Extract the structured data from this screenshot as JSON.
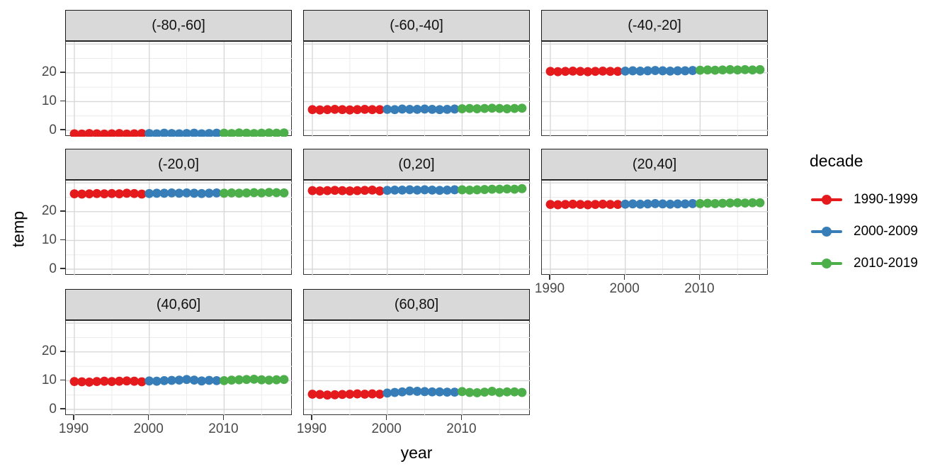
{
  "axes": {
    "x_title": "year",
    "y_title": "temp",
    "x_tick_labels": [
      "1990",
      "2000",
      "2010"
    ],
    "y_tick_labels": [
      "0",
      "10",
      "20"
    ]
  },
  "legend": {
    "title": "decade",
    "entries": [
      {
        "label": "1990-1999",
        "color": "#e41a1c"
      },
      {
        "label": "2000-2009",
        "color": "#377eb8"
      },
      {
        "label": "2010-2019",
        "color": "#4daf4a"
      }
    ]
  },
  "chart_data": {
    "type": "scatter",
    "title": "",
    "xlabel": "year",
    "ylabel": "temp",
    "legend_title": "decade",
    "legend_position": "right",
    "grid": true,
    "facet_shape": "3 columns x 3 rows, 8 panels",
    "x_ticks": [
      1990,
      2000,
      2010
    ],
    "x_minor_ticks": [
      1995,
      2005,
      2015
    ],
    "y_ticks": [
      0,
      10,
      20,
      30
    ],
    "y_minor_ticks": [
      5,
      15,
      25
    ],
    "xlim": [
      1988.9,
      2019.2
    ],
    "ylim": [
      -2.2,
      30.8
    ],
    "x": [
      1990,
      1991,
      1992,
      1993,
      1994,
      1995,
      1996,
      1997,
      1998,
      1999,
      2000,
      2001,
      2002,
      2003,
      2004,
      2005,
      2006,
      2007,
      2008,
      2009,
      2010,
      2011,
      2012,
      2013,
      2014,
      2015,
      2016,
      2017,
      2018
    ],
    "decades": [
      {
        "name": "1990-1999",
        "from": 1990,
        "to": 1999,
        "color": "#e41a1c"
      },
      {
        "name": "2000-2009",
        "from": 2000,
        "to": 2009,
        "color": "#377eb8"
      },
      {
        "name": "2010-2019",
        "from": 2010,
        "to": 2019,
        "color": "#4daf4a"
      }
    ],
    "facets": [
      {
        "label": "(-80,-60]",
        "temp": [
          -1.2,
          -1.3,
          -1.1,
          -1.2,
          -1.3,
          -1.2,
          -1.1,
          -1.3,
          -1.2,
          -1.1,
          -1.1,
          -1.2,
          -1.0,
          -1.1,
          -1.2,
          -1.1,
          -1.0,
          -1.2,
          -1.1,
          -1.0,
          -1.0,
          -1.1,
          -0.9,
          -1.0,
          -1.1,
          -1.0,
          -0.9,
          -1.0,
          -0.9
        ]
      },
      {
        "label": "(-60,-40]",
        "temp": [
          7.2,
          7.1,
          7.2,
          7.3,
          7.2,
          7.1,
          7.2,
          7.3,
          7.2,
          7.2,
          7.3,
          7.2,
          7.4,
          7.3,
          7.3,
          7.4,
          7.3,
          7.2,
          7.3,
          7.4,
          7.5,
          7.6,
          7.5,
          7.6,
          7.7,
          7.6,
          7.5,
          7.6,
          7.7
        ]
      },
      {
        "label": "(-40,-20]",
        "temp": [
          20.5,
          20.4,
          20.5,
          20.6,
          20.5,
          20.4,
          20.5,
          20.6,
          20.5,
          20.5,
          20.6,
          20.7,
          20.6,
          20.7,
          20.8,
          20.7,
          20.6,
          20.7,
          20.7,
          20.8,
          20.9,
          21.0,
          20.9,
          21.0,
          21.1,
          21.0,
          21.1,
          21.0,
          21.1
        ]
      },
      {
        "label": "(-20,0]",
        "temp": [
          26.2,
          26.1,
          26.2,
          26.3,
          26.2,
          26.3,
          26.2,
          26.4,
          26.3,
          26.1,
          26.3,
          26.4,
          26.4,
          26.5,
          26.4,
          26.5,
          26.4,
          26.3,
          26.4,
          26.5,
          26.4,
          26.5,
          26.4,
          26.5,
          26.6,
          26.5,
          26.7,
          26.6,
          26.5
        ]
      },
      {
        "label": "(0,20]",
        "temp": [
          27.3,
          27.2,
          27.3,
          27.4,
          27.3,
          27.2,
          27.3,
          27.4,
          27.5,
          27.2,
          27.4,
          27.5,
          27.5,
          27.6,
          27.5,
          27.6,
          27.5,
          27.4,
          27.5,
          27.6,
          27.6,
          27.5,
          27.6,
          27.7,
          27.8,
          27.8,
          27.9,
          27.8,
          28.0
        ]
      },
      {
        "label": "(20,40]",
        "temp": [
          22.5,
          22.4,
          22.5,
          22.6,
          22.5,
          22.4,
          22.5,
          22.6,
          22.5,
          22.5,
          22.6,
          22.7,
          22.6,
          22.7,
          22.8,
          22.7,
          22.6,
          22.7,
          22.7,
          22.8,
          22.8,
          22.9,
          22.8,
          22.9,
          23.0,
          23.1,
          23.0,
          23.1,
          23.1
        ]
      },
      {
        "label": "(40,60]",
        "temp": [
          9.7,
          9.6,
          9.5,
          9.7,
          9.8,
          9.7,
          9.8,
          9.9,
          9.8,
          9.6,
          9.9,
          9.8,
          10.0,
          10.1,
          10.2,
          10.4,
          10.2,
          9.9,
          10.1,
          10.0,
          10.0,
          10.2,
          10.3,
          10.4,
          10.5,
          10.3,
          10.2,
          10.3,
          10.4
        ]
      },
      {
        "label": "(60,80]",
        "temp": [
          5.3,
          5.2,
          5.0,
          5.1,
          5.2,
          5.3,
          5.4,
          5.3,
          5.4,
          5.3,
          5.7,
          5.9,
          6.1,
          6.4,
          6.3,
          6.2,
          6.1,
          6.1,
          6.0,
          6.0,
          6.2,
          5.9,
          5.8,
          6.0,
          6.3,
          5.9,
          6.1,
          6.1,
          5.9
        ]
      }
    ]
  },
  "style": {
    "strip_fill": "#d9d9d9",
    "panel_border": "#333333",
    "grid_major": "#d8d8d8",
    "grid_minor": "#ececec",
    "tick_text": "#4a4a4a"
  }
}
